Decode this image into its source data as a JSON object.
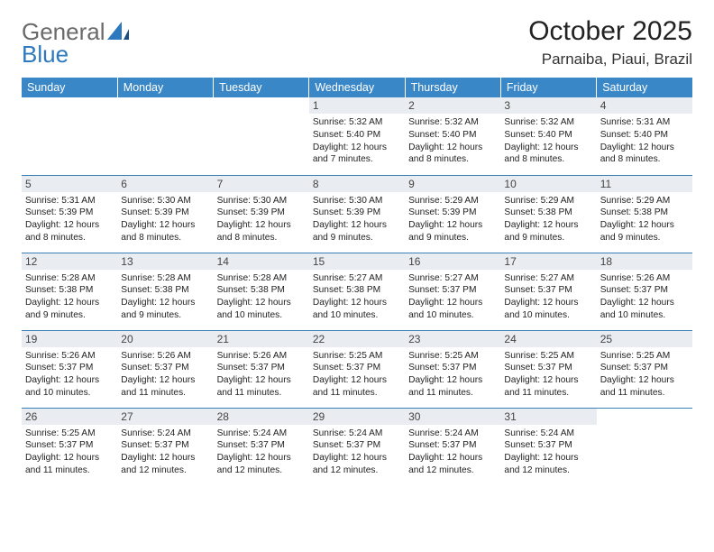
{
  "logo": {
    "word1": "General",
    "word2": "Blue"
  },
  "title": "October 2025",
  "location": "Parnaiba, Piaui, Brazil",
  "colors": {
    "header_bg": "#3a87c8",
    "header_text": "#ffffff",
    "daynum_bg": "#e9edf1",
    "row_divider": "#3a7fb5",
    "logo_general": "#6a6a6a",
    "logo_blue": "#2e78bd",
    "body_text": "#222222"
  },
  "day_names": [
    "Sunday",
    "Monday",
    "Tuesday",
    "Wednesday",
    "Thursday",
    "Friday",
    "Saturday"
  ],
  "weeks": [
    [
      {
        "n": "",
        "sunrise": "",
        "sunset": "",
        "daylight": ""
      },
      {
        "n": "",
        "sunrise": "",
        "sunset": "",
        "daylight": ""
      },
      {
        "n": "",
        "sunrise": "",
        "sunset": "",
        "daylight": ""
      },
      {
        "n": "1",
        "sunrise": "5:32 AM",
        "sunset": "5:40 PM",
        "daylight": "12 hours and 7 minutes."
      },
      {
        "n": "2",
        "sunrise": "5:32 AM",
        "sunset": "5:40 PM",
        "daylight": "12 hours and 8 minutes."
      },
      {
        "n": "3",
        "sunrise": "5:32 AM",
        "sunset": "5:40 PM",
        "daylight": "12 hours and 8 minutes."
      },
      {
        "n": "4",
        "sunrise": "5:31 AM",
        "sunset": "5:40 PM",
        "daylight": "12 hours and 8 minutes."
      }
    ],
    [
      {
        "n": "5",
        "sunrise": "5:31 AM",
        "sunset": "5:39 PM",
        "daylight": "12 hours and 8 minutes."
      },
      {
        "n": "6",
        "sunrise": "5:30 AM",
        "sunset": "5:39 PM",
        "daylight": "12 hours and 8 minutes."
      },
      {
        "n": "7",
        "sunrise": "5:30 AM",
        "sunset": "5:39 PM",
        "daylight": "12 hours and 8 minutes."
      },
      {
        "n": "8",
        "sunrise": "5:30 AM",
        "sunset": "5:39 PM",
        "daylight": "12 hours and 9 minutes."
      },
      {
        "n": "9",
        "sunrise": "5:29 AM",
        "sunset": "5:39 PM",
        "daylight": "12 hours and 9 minutes."
      },
      {
        "n": "10",
        "sunrise": "5:29 AM",
        "sunset": "5:38 PM",
        "daylight": "12 hours and 9 minutes."
      },
      {
        "n": "11",
        "sunrise": "5:29 AM",
        "sunset": "5:38 PM",
        "daylight": "12 hours and 9 minutes."
      }
    ],
    [
      {
        "n": "12",
        "sunrise": "5:28 AM",
        "sunset": "5:38 PM",
        "daylight": "12 hours and 9 minutes."
      },
      {
        "n": "13",
        "sunrise": "5:28 AM",
        "sunset": "5:38 PM",
        "daylight": "12 hours and 9 minutes."
      },
      {
        "n": "14",
        "sunrise": "5:28 AM",
        "sunset": "5:38 PM",
        "daylight": "12 hours and 10 minutes."
      },
      {
        "n": "15",
        "sunrise": "5:27 AM",
        "sunset": "5:38 PM",
        "daylight": "12 hours and 10 minutes."
      },
      {
        "n": "16",
        "sunrise": "5:27 AM",
        "sunset": "5:37 PM",
        "daylight": "12 hours and 10 minutes."
      },
      {
        "n": "17",
        "sunrise": "5:27 AM",
        "sunset": "5:37 PM",
        "daylight": "12 hours and 10 minutes."
      },
      {
        "n": "18",
        "sunrise": "5:26 AM",
        "sunset": "5:37 PM",
        "daylight": "12 hours and 10 minutes."
      }
    ],
    [
      {
        "n": "19",
        "sunrise": "5:26 AM",
        "sunset": "5:37 PM",
        "daylight": "12 hours and 10 minutes."
      },
      {
        "n": "20",
        "sunrise": "5:26 AM",
        "sunset": "5:37 PM",
        "daylight": "12 hours and 11 minutes."
      },
      {
        "n": "21",
        "sunrise": "5:26 AM",
        "sunset": "5:37 PM",
        "daylight": "12 hours and 11 minutes."
      },
      {
        "n": "22",
        "sunrise": "5:25 AM",
        "sunset": "5:37 PM",
        "daylight": "12 hours and 11 minutes."
      },
      {
        "n": "23",
        "sunrise": "5:25 AM",
        "sunset": "5:37 PM",
        "daylight": "12 hours and 11 minutes."
      },
      {
        "n": "24",
        "sunrise": "5:25 AM",
        "sunset": "5:37 PM",
        "daylight": "12 hours and 11 minutes."
      },
      {
        "n": "25",
        "sunrise": "5:25 AM",
        "sunset": "5:37 PM",
        "daylight": "12 hours and 11 minutes."
      }
    ],
    [
      {
        "n": "26",
        "sunrise": "5:25 AM",
        "sunset": "5:37 PM",
        "daylight": "12 hours and 11 minutes."
      },
      {
        "n": "27",
        "sunrise": "5:24 AM",
        "sunset": "5:37 PM",
        "daylight": "12 hours and 12 minutes."
      },
      {
        "n": "28",
        "sunrise": "5:24 AM",
        "sunset": "5:37 PM",
        "daylight": "12 hours and 12 minutes."
      },
      {
        "n": "29",
        "sunrise": "5:24 AM",
        "sunset": "5:37 PM",
        "daylight": "12 hours and 12 minutes."
      },
      {
        "n": "30",
        "sunrise": "5:24 AM",
        "sunset": "5:37 PM",
        "daylight": "12 hours and 12 minutes."
      },
      {
        "n": "31",
        "sunrise": "5:24 AM",
        "sunset": "5:37 PM",
        "daylight": "12 hours and 12 minutes."
      },
      {
        "n": "",
        "sunrise": "",
        "sunset": "",
        "daylight": ""
      }
    ]
  ],
  "labels": {
    "sunrise": "Sunrise:",
    "sunset": "Sunset:",
    "daylight": "Daylight:"
  }
}
